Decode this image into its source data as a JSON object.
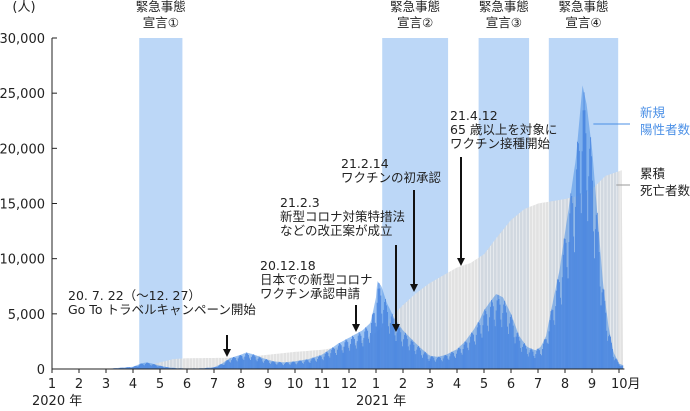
{
  "chart_data": {
    "type": "bar",
    "y_unit": "(人)",
    "ylim": [
      0,
      30000
    ],
    "y_ticks": [
      {
        "value": 0,
        "label": "0"
      },
      {
        "value": 5000,
        "label": "5,000"
      },
      {
        "value": 10000,
        "label": "10,000"
      },
      {
        "value": 15000,
        "label": "15,000"
      },
      {
        "value": 20000,
        "label": "20,000"
      },
      {
        "value": 25000,
        "label": "25,000"
      },
      {
        "value": 30000,
        "label": "30,000"
      }
    ],
    "x_ticks": [
      "1",
      "2",
      "3",
      "4",
      "5",
      "6",
      "7",
      "8",
      "9",
      "10",
      "11",
      "12",
      "1",
      "2",
      "3",
      "4",
      "5",
      "6",
      "7",
      "8",
      "9",
      "10月"
    ],
    "year_labels": [
      {
        "label": "2020 年",
        "month_index": 0
      },
      {
        "label": "2021 年",
        "month_index": 12
      }
    ],
    "grid": false,
    "emergency_periods": [
      {
        "label": [
          "緊急事態",
          "宣言①"
        ],
        "start": 3.23,
        "end": 4.83
      },
      {
        "label": [
          "緊急事態",
          "宣言②"
        ],
        "start": 12.23,
        "end": 14.67
      },
      {
        "label": [
          "緊急事態",
          "宣言③"
        ],
        "start": 15.8,
        "end": 17.67
      },
      {
        "label": [
          "緊急事態",
          "宣言④"
        ],
        "start": 18.4,
        "end": 20.97
      }
    ],
    "series": [
      {
        "name": "新規陽性者数",
        "legend_lines": [
          "新規",
          "陽性者数"
        ],
        "color": "#4a8fe6",
        "x_month": [
          0.0,
          2.0,
          3.0,
          3.3,
          3.5,
          3.7,
          4.0,
          4.3,
          4.6,
          5.0,
          5.5,
          6.0,
          6.3,
          6.6,
          7.0,
          7.2,
          7.5,
          7.8,
          8.2,
          8.6,
          9.0,
          9.5,
          10.0,
          10.3,
          10.6,
          10.9,
          11.2,
          11.5,
          11.8,
          12.0,
          12.05,
          12.2,
          12.4,
          12.7,
          13.0,
          13.4,
          13.7,
          14.0,
          14.3,
          14.6,
          15.0,
          15.3,
          15.6,
          15.85,
          16.0,
          16.2,
          16.45,
          16.7,
          17.0,
          17.3,
          17.6,
          17.9,
          18.1,
          18.3,
          18.5,
          18.8,
          19.1,
          19.4,
          19.55,
          19.65,
          19.8,
          20.0,
          20.2,
          20.4,
          20.6,
          20.8,
          21.0,
          21.2
        ],
        "values": [
          0,
          10,
          200,
          500,
          600,
          500,
          300,
          150,
          80,
          50,
          60,
          150,
          500,
          1000,
          1300,
          1500,
          1300,
          1000,
          700,
          600,
          700,
          900,
          1300,
          1800,
          2300,
          2700,
          3100,
          3500,
          4200,
          6500,
          8000,
          7500,
          6000,
          4500,
          3500,
          2500,
          1800,
          1200,
          1100,
          1300,
          1800,
          2500,
          3500,
          4500,
          5300,
          6000,
          6800,
          6500,
          5000,
          3000,
          2000,
          1700,
          2000,
          3000,
          5500,
          9000,
          14000,
          19000,
          23000,
          25700,
          24000,
          20000,
          14000,
          8000,
          4000,
          1500,
          500,
          300
        ]
      },
      {
        "name": "累積死亡者数",
        "legend_lines": [
          "累積",
          "死亡者数"
        ],
        "color": "#d8d8d8",
        "x_month": [
          0.0,
          2.0,
          3.0,
          3.5,
          4.0,
          4.5,
          5.0,
          6.0,
          7.0,
          8.0,
          9.0,
          10.0,
          11.0,
          11.5,
          12.0,
          12.5,
          13.0,
          13.5,
          14.0,
          14.5,
          15.0,
          15.5,
          16.0,
          16.5,
          17.0,
          17.5,
          18.0,
          18.5,
          19.0,
          19.5,
          20.0,
          20.5,
          21.2
        ],
        "values": [
          0,
          2,
          60,
          300,
          600,
          900,
          980,
          1000,
          1030,
          1290,
          1550,
          1740,
          2100,
          2600,
          3300,
          4500,
          5800,
          6900,
          7800,
          8500,
          9200,
          9600,
          10400,
          12000,
          13500,
          14500,
          15000,
          15200,
          15400,
          15700,
          16300,
          17500,
          18100
        ]
      }
    ],
    "annotations": [
      {
        "lines": [
          "20. 7. 22（〜12. 27）",
          "Go To トラベルキャンペーン開始"
        ],
        "date": "2020-07-22"
      },
      {
        "lines": [
          "20.12.18",
          "日本での新型コロナ",
          "ワクチン承認申請"
        ],
        "date": "2020-12-18"
      },
      {
        "lines": [
          "21.2.3",
          "新型コロナ対策特措法",
          "などの改正案が成立"
        ],
        "date": "2021-02-03"
      },
      {
        "lines": [
          "21.2.14",
          "ワクチンの初承認"
        ],
        "date": "2021-02-14"
      },
      {
        "lines": [
          "21.4.12",
          "65 歳以上を対象に",
          "ワクチン接種開始"
        ],
        "date": "2021-04-12"
      }
    ]
  }
}
